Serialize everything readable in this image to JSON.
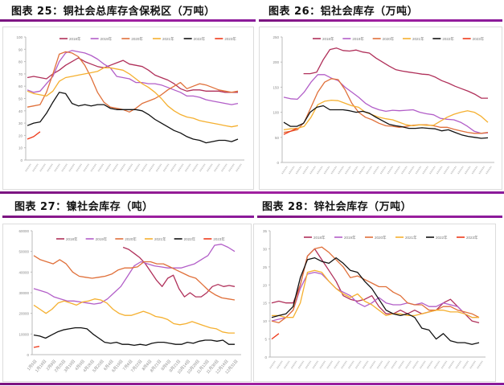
{
  "titles": {
    "c25": "图表 25：铜社会总库存含保税区（万吨）",
    "c26": "图表 26：铝社会库存（万吨）",
    "c27": "图表 27：镍社会库存（吨）",
    "c28": "图表 28：锌社会库存（万吨）"
  },
  "colors": {
    "2018年": "#b0305a",
    "2019年": "#b25ec8",
    "2020年": "#e0703a",
    "2021年": "#f5b030",
    "2022年": "#111111",
    "2023年": "#ee3a1a",
    "rule": "#9a1aa0"
  },
  "chart_data": [
    {
      "id": "c25",
      "type": "line",
      "title": "图表 25：铜社会总库存含保税区（万吨）",
      "ylim": [
        0,
        100
      ],
      "yticks": [
        0,
        10,
        20,
        30,
        40,
        50,
        60,
        70,
        80,
        90,
        100
      ],
      "legend": [
        "2018年",
        "2019年",
        "2020年",
        "2021年",
        "2022年",
        "2023年"
      ],
      "legend_position": "top",
      "xcount": 52,
      "series": [
        {
          "name": "2018年",
          "values": [
            67,
            68,
            67,
            66,
            70,
            73,
            77,
            80,
            83,
            80,
            78,
            76,
            75,
            77,
            79,
            81,
            78,
            77,
            76,
            73,
            69,
            67,
            65,
            62,
            58,
            56,
            57,
            57,
            56,
            56,
            56,
            55,
            55,
            55
          ]
        },
        {
          "name": "2019年",
          "values": [
            57,
            55,
            56,
            62,
            68,
            80,
            87,
            89,
            88,
            87,
            85,
            82,
            78,
            75,
            68,
            67,
            66,
            63,
            63,
            62,
            62,
            61,
            59,
            57,
            55,
            52,
            52,
            51,
            49,
            48,
            47,
            46,
            45,
            46
          ]
        },
        {
          "name": "2020年",
          "values": [
            43,
            44,
            45,
            55,
            70,
            86,
            88,
            87,
            84,
            77,
            67,
            55,
            47,
            43,
            42,
            41,
            39,
            42,
            46,
            48,
            50,
            53,
            57,
            60,
            63,
            58,
            60,
            62,
            61,
            59,
            57,
            56,
            55,
            56
          ]
        },
        {
          "name": "2021年",
          "values": [
            56,
            54,
            53,
            52,
            56,
            64,
            67,
            68,
            69,
            70,
            71,
            72,
            75,
            75,
            74,
            73,
            70,
            66,
            62,
            59,
            55,
            50,
            44,
            40,
            37,
            35,
            34,
            32,
            31,
            30,
            29,
            28,
            27,
            28
          ]
        },
        {
          "name": "2022年",
          "values": [
            28,
            30,
            31,
            38,
            47,
            55,
            54,
            46,
            44,
            45,
            44,
            45,
            45,
            42,
            41,
            41,
            41,
            41,
            40,
            37,
            33,
            30,
            27,
            24,
            22,
            19,
            17,
            16,
            14,
            15,
            16,
            16,
            15,
            17
          ]
        },
        {
          "name": "2023年",
          "values": [
            17,
            19,
            23
          ]
        }
      ]
    },
    {
      "id": "c26",
      "type": "line",
      "title": "图表 26：铝社会库存（万吨）",
      "ylim": [
        0,
        250
      ],
      "yticks": [
        0,
        50,
        100,
        150,
        200,
        250
      ],
      "legend": [
        "2018年",
        "2019年",
        "2020年",
        "2021年",
        "2022年",
        "2023年"
      ],
      "legend_position": "top",
      "series": [
        {
          "name": "2018年",
          "values": [
            null,
            null,
            null,
            177,
            177,
            180,
            205,
            225,
            228,
            223,
            222,
            224,
            220,
            218,
            208,
            200,
            192,
            185,
            182,
            180,
            178,
            176,
            175,
            170,
            163,
            158,
            152,
            147,
            142,
            136,
            128,
            128
          ]
        },
        {
          "name": "2019年",
          "values": [
            130,
            127,
            126,
            140,
            160,
            175,
            175,
            168,
            163,
            150,
            140,
            130,
            118,
            110,
            105,
            102,
            104,
            103,
            104,
            105,
            100,
            97,
            95,
            88,
            86,
            85,
            80,
            72,
            62,
            58,
            59
          ]
        },
        {
          "name": "2020年",
          "values": [
            60,
            62,
            65,
            80,
            110,
            140,
            160,
            167,
            165,
            145,
            118,
            100,
            90,
            85,
            78,
            73,
            72,
            70,
            72,
            74,
            75,
            75,
            73,
            70,
            70,
            66,
            63,
            60,
            58,
            58,
            60
          ]
        },
        {
          "name": "2021年",
          "values": [
            65,
            67,
            68,
            72,
            90,
            115,
            122,
            124,
            123,
            118,
            113,
            110,
            100,
            95,
            90,
            87,
            85,
            80,
            75,
            73,
            75,
            74,
            74,
            82,
            90,
            96,
            100,
            103,
            100,
            92,
            80
          ]
        },
        {
          "name": "2022年",
          "values": [
            80,
            72,
            72,
            78,
            100,
            110,
            113,
            105,
            105,
            105,
            103,
            100,
            102,
            98,
            90,
            83,
            76,
            73,
            71,
            68,
            68,
            69,
            68,
            67,
            63,
            65,
            60,
            55,
            52,
            50,
            48,
            49
          ]
        },
        {
          "name": "2023年",
          "values": [
            56,
            62,
            68
          ]
        }
      ]
    },
    {
      "id": "c27",
      "type": "line",
      "title": "图表 27：镍社会库存（吨）",
      "ylim": [
        0,
        60000
      ],
      "yticks": [
        0,
        10000,
        20000,
        30000,
        40000,
        50000,
        60000
      ],
      "xticks": [
        "1月5日",
        "1月19日",
        "2月8日",
        "2月25日",
        "3月19日",
        "4月9日",
        "4月26日",
        "5月20日",
        "6月4日",
        "6月19日",
        "7月6日",
        "7月22日",
        "8月6日",
        "8月21日",
        "9月6日",
        "9月21日",
        "10月14日",
        "10月29日",
        "11月13日",
        "11月30日",
        "12月16日",
        "12月31日"
      ],
      "legend": [
        "2018年",
        "2019年",
        "2020年",
        "2021年",
        "2022年",
        "2023年"
      ],
      "legend_position": "top",
      "series": [
        {
          "name": "2018年",
          "values": [
            null,
            null,
            null,
            null,
            null,
            null,
            null,
            null,
            null,
            null,
            null,
            null,
            null,
            null,
            null,
            null,
            52000,
            51000,
            49000,
            47000,
            44000,
            40000,
            36000,
            33000,
            37000,
            38500,
            32000,
            28000,
            30000,
            28000,
            28000,
            30000,
            33000,
            34000,
            33000,
            33500,
            33000
          ]
        },
        {
          "name": "2019年",
          "values": [
            32000,
            31000,
            30000,
            28000,
            27000,
            26000,
            26000,
            25500,
            25000,
            24500,
            25000,
            27000,
            30000,
            33000,
            38000,
            43000,
            45000,
            44000,
            43000,
            42500,
            42000,
            42000,
            42000,
            43000,
            44000,
            46000,
            48000,
            53000,
            53500,
            52000,
            50000
          ]
        },
        {
          "name": "2020年",
          "values": [
            48000,
            46000,
            45000,
            44000,
            46000,
            44000,
            40000,
            38000,
            37500,
            37000,
            37500,
            38000,
            39000,
            41000,
            42000,
            42000,
            42500,
            45000,
            45000,
            44000,
            44000,
            42500,
            41000,
            39500,
            38000,
            37000,
            34000,
            31000,
            29000,
            27500,
            27000,
            26500
          ]
        },
        {
          "name": "2021年",
          "values": [
            24000,
            22000,
            20000,
            22000,
            25000,
            26000,
            25000,
            24000,
            25500,
            26000,
            27000,
            26500,
            25000,
            22000,
            20000,
            19000,
            19000,
            20000,
            21000,
            20000,
            18500,
            18000,
            17000,
            15000,
            14500,
            15000,
            16000,
            15000,
            14000,
            13000,
            12500,
            11000,
            10500,
            10500
          ]
        },
        {
          "name": "2022年",
          "values": [
            9500,
            9000,
            8000,
            9500,
            11000,
            12000,
            12500,
            13000,
            13000,
            12500,
            10000,
            8000,
            6000,
            5500,
            6000,
            5000,
            5000,
            4500,
            5000,
            4500,
            5500,
            6000,
            6000,
            5500,
            5000,
            5000,
            6000,
            5500,
            6500,
            7000,
            7000,
            6500,
            7000,
            5000,
            5000
          ]
        },
        {
          "name": "2023年",
          "values": [
            3500,
            4000
          ]
        }
      ]
    },
    {
      "id": "c28",
      "type": "line",
      "title": "图表 28：锌社会库存（万吨）",
      "ylim": [
        0,
        35
      ],
      "yticks": [
        0,
        5,
        10,
        15,
        20,
        25,
        30,
        35
      ],
      "legend": [
        "2018年",
        "2019年",
        "2020年",
        "2021年",
        "2022年",
        "2023年"
      ],
      "legend_position": "top",
      "series": [
        {
          "name": "2018年",
          "values": [
            15,
            15.5,
            15,
            15,
            20,
            28,
            30,
            27,
            24,
            21,
            17,
            16,
            15.5,
            16,
            17,
            14,
            12,
            12,
            13,
            12,
            13,
            12,
            12.5,
            13,
            15,
            16,
            14,
            12,
            10,
            9.5
          ]
        },
        {
          "name": "2019年",
          "values": [
            10,
            10.5,
            11,
            13,
            19,
            23,
            23.5,
            23,
            21,
            19,
            18,
            17,
            15,
            14,
            15,
            16.5,
            15,
            14.5,
            14.5,
            15,
            14.5,
            15,
            14,
            14,
            15,
            14.5,
            14,
            12,
            11,
            11
          ]
        },
        {
          "name": "2020年",
          "values": [
            10,
            9.5,
            11,
            13,
            20,
            28,
            30,
            30.5,
            29,
            27,
            25,
            22,
            22.5,
            21.5,
            20.5,
            19.5,
            19.5,
            18,
            17,
            15,
            14.5,
            14.5,
            13,
            13,
            14,
            14,
            13,
            12.5,
            12,
            11
          ]
        },
        {
          "name": "2021年",
          "values": [
            11.5,
            11.5,
            11,
            11,
            15,
            23.5,
            24,
            23.5,
            21,
            19,
            17.5,
            16.5,
            17.5,
            15.5,
            14.5,
            13,
            11.5,
            12,
            12,
            11.5,
            11.5,
            12,
            12.5,
            13,
            13,
            12.5,
            12.5,
            12,
            11,
            11
          ]
        },
        {
          "name": "2022年",
          "values": [
            11,
            11.5,
            12,
            14,
            22,
            27,
            27.5,
            26.5,
            26,
            27.5,
            26,
            24,
            23.5,
            21,
            19,
            16,
            13,
            12,
            11.5,
            12,
            11,
            8,
            7.5,
            5,
            6.5,
            4.5,
            4,
            4,
            3.5,
            4
          ]
        },
        {
          "name": "2023年",
          "values": [
            5,
            6.5
          ]
        }
      ]
    }
  ]
}
